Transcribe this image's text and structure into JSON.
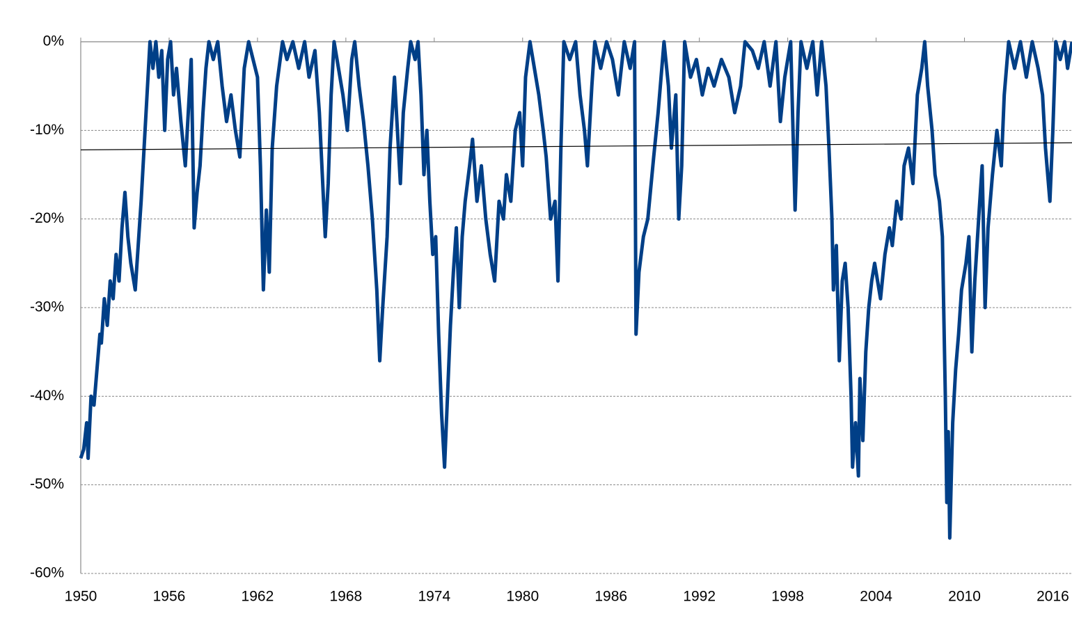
{
  "chart_data": {
    "type": "line",
    "color": "#003f87",
    "x": [
      1950,
      1950.2,
      1950.4,
      1950.5,
      1950.7,
      1950.9,
      1951.1,
      1951.3,
      1951.4,
      1951.6,
      1951.8,
      1952.0,
      1952.2,
      1952.4,
      1952.6,
      1952.8,
      1953.0,
      1953.2,
      1953.4,
      1953.7,
      1953.9,
      1954.1,
      1954.3,
      1954.5,
      1954.7,
      1954.9,
      1955.1,
      1955.3,
      1955.5,
      1955.7,
      1955.9,
      1956.1,
      1956.3,
      1956.5,
      1956.8,
      1957.1,
      1957.3,
      1957.5,
      1957.7,
      1957.9,
      1958.1,
      1958.3,
      1958.5,
      1958.7,
      1959.0,
      1959.3,
      1959.6,
      1959.9,
      1960.2,
      1960.5,
      1960.8,
      1961.1,
      1961.4,
      1961.7,
      1962.0,
      1962.2,
      1962.4,
      1962.6,
      1962.8,
      1963.0,
      1963.3,
      1963.7,
      1964.0,
      1964.4,
      1964.8,
      1965.2,
      1965.5,
      1965.9,
      1966.2,
      1966.4,
      1966.6,
      1966.8,
      1967.0,
      1967.2,
      1967.5,
      1967.8,
      1968.1,
      1968.4,
      1968.6,
      1968.9,
      1969.2,
      1969.5,
      1969.8,
      1970.1,
      1970.3,
      1970.5,
      1970.8,
      1971.0,
      1971.3,
      1971.5,
      1971.7,
      1971.9,
      1972.2,
      1972.4,
      1972.7,
      1972.9,
      1973.1,
      1973.3,
      1973.5,
      1973.7,
      1973.9,
      1974.1,
      1974.3,
      1974.5,
      1974.7,
      1974.9,
      1975.1,
      1975.3,
      1975.5,
      1975.7,
      1975.9,
      1976.1,
      1976.4,
      1976.6,
      1976.9,
      1977.2,
      1977.5,
      1977.8,
      1978.1,
      1978.4,
      1978.7,
      1978.9,
      1979.2,
      1979.5,
      1979.8,
      1980.0,
      1980.2,
      1980.5,
      1980.8,
      1981.1,
      1981.4,
      1981.6,
      1981.9,
      1982.2,
      1982.4,
      1982.6,
      1982.8,
      1983.2,
      1983.6,
      1983.9,
      1984.2,
      1984.4,
      1984.7,
      1984.9,
      1985.3,
      1985.7,
      1986.1,
      1986.5,
      1986.9,
      1987.3,
      1987.6,
      1987.7,
      1987.9,
      1988.2,
      1988.5,
      1988.9,
      1989.2,
      1989.6,
      1989.9,
      1990.1,
      1990.4,
      1990.6,
      1990.8,
      1991.0,
      1991.4,
      1991.8,
      1992.2,
      1992.6,
      1993.0,
      1993.5,
      1994.0,
      1994.4,
      1994.8,
      1995.1,
      1995.6,
      1996.0,
      1996.4,
      1996.8,
      1997.2,
      1997.5,
      1997.8,
      1998.2,
      1998.5,
      1998.7,
      1998.9,
      1999.3,
      1999.7,
      2000.0,
      2000.3,
      2000.6,
      2000.8,
      2001.0,
      2001.1,
      2001.3,
      2001.5,
      2001.7,
      2001.9,
      2002.1,
      2002.3,
      2002.4,
      2002.6,
      2002.8,
      2002.9,
      2003.1,
      2003.3,
      2003.5,
      2003.7,
      2003.9,
      2004.1,
      2004.3,
      2004.6,
      2004.9,
      2005.1,
      2005.4,
      2005.7,
      2005.9,
      2006.2,
      2006.5,
      2006.8,
      2007.1,
      2007.3,
      2007.5,
      2007.8,
      2008.0,
      2008.3,
      2008.5,
      2008.7,
      2008.8,
      2008.9,
      2009.0,
      2009.2,
      2009.4,
      2009.6,
      2009.8,
      2010.1,
      2010.3,
      2010.5,
      2010.7,
      2011.0,
      2011.2,
      2011.4,
      2011.6,
      2011.9,
      2012.2,
      2012.5,
      2012.7,
      2013.0,
      2013.4,
      2013.8,
      2014.2,
      2014.6,
      2015.0,
      2015.3,
      2015.5,
      2015.8,
      2016.0,
      2016.2,
      2016.5,
      2016.8,
      2017.0,
      2017.3
    ],
    "values": [
      -47,
      -46,
      -43,
      -47,
      -40,
      -41,
      -37,
      -33,
      -34,
      -29,
      -32,
      -27,
      -29,
      -24,
      -27,
      -21,
      -17,
      -22,
      -25,
      -28,
      -23,
      -18,
      -12,
      -6,
      0,
      -3,
      0,
      -4,
      -1,
      -10,
      -2,
      0,
      -6,
      -3,
      -9,
      -14,
      -8,
      -2,
      -21,
      -17,
      -14,
      -8,
      -3,
      0,
      -2,
      0,
      -5,
      -9,
      -6,
      -10,
      -13,
      -3,
      0,
      -2,
      -4,
      -14,
      -28,
      -19,
      -26,
      -12,
      -5,
      0,
      -2,
      0,
      -3,
      0,
      -4,
      -1,
      -8,
      -15,
      -22,
      -16,
      -6,
      0,
      -3,
      -6,
      -10,
      -2,
      0,
      -5,
      -9,
      -14,
      -20,
      -28,
      -36,
      -30,
      -22,
      -12,
      -4,
      -10,
      -16,
      -8,
      -3,
      0,
      -2,
      0,
      -6,
      -15,
      -10,
      -18,
      -24,
      -22,
      -33,
      -42,
      -48,
      -40,
      -32,
      -26,
      -21,
      -30,
      -22,
      -18,
      -14,
      -11,
      -18,
      -14,
      -20,
      -24,
      -27,
      -18,
      -20,
      -15,
      -18,
      -10,
      -8,
      -14,
      -4,
      0,
      -3,
      -6,
      -10,
      -13,
      -20,
      -18,
      -27,
      -12,
      0,
      -2,
      0,
      -6,
      -10,
      -14,
      -5,
      0,
      -3,
      0,
      -2,
      -6,
      0,
      -3,
      0,
      -33,
      -26,
      -22,
      -20,
      -13,
      -8,
      0,
      -5,
      -12,
      -6,
      -20,
      -14,
      0,
      -4,
      -2,
      -6,
      -3,
      -5,
      -2,
      -4,
      -8,
      -5,
      0,
      -1,
      -3,
      0,
      -5,
      0,
      -9,
      -4,
      0,
      -19,
      -8,
      0,
      -3,
      0,
      -6,
      0,
      -5,
      -12,
      -20,
      -28,
      -23,
      -36,
      -27,
      -25,
      -30,
      -40,
      -48,
      -43,
      -49,
      -38,
      -45,
      -35,
      -30,
      -27,
      -25,
      -27,
      -29,
      -24,
      -21,
      -23,
      -18,
      -20,
      -14,
      -12,
      -16,
      -6,
      -3,
      0,
      -5,
      -10,
      -15,
      -18,
      -22,
      -40,
      -52,
      -44,
      -56,
      -43,
      -37,
      -33,
      -28,
      -25,
      -22,
      -35,
      -27,
      -19,
      -14,
      -30,
      -21,
      -15,
      -10,
      -14,
      -6,
      0,
      -3,
      0,
      -4,
      0,
      -3,
      -6,
      -12,
      -18,
      -10,
      0,
      -2,
      0,
      -3,
      0
    ],
    "trendline": {
      "x": [
        1950,
        2017.3
      ],
      "values": [
        -12.2,
        -11.4
      ],
      "color": "#000000"
    },
    "xlim": [
      1950,
      2017.3
    ],
    "xticks": [
      1950,
      1956,
      1962,
      1968,
      1974,
      1980,
      1986,
      1992,
      1998,
      2004,
      2010,
      2016
    ],
    "ylim": [
      -60,
      0
    ],
    "yticks": [
      {
        "value": 0,
        "label": "0%"
      },
      {
        "value": -10,
        "label": "-10%"
      },
      {
        "value": -20,
        "label": "-20%"
      },
      {
        "value": -30,
        "label": "-30%"
      },
      {
        "value": -40,
        "label": "-40%"
      },
      {
        "value": -50,
        "label": "-50%"
      },
      {
        "value": -60,
        "label": "-60%"
      }
    ],
    "grid": true
  }
}
